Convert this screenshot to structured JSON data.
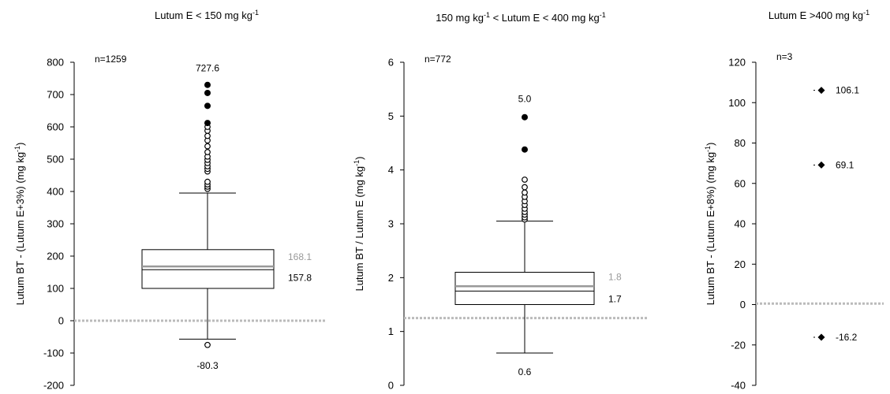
{
  "chart_data": [
    {
      "type": "boxplot",
      "title": "Lutum E < 150 mg kg",
      "title_sup": "-1",
      "ylabel": "Lutum BT - (Lutum E+3%) (mg kg",
      "ylabel_sup": "-1",
      "ylabel_tail": ")",
      "ylim": [
        -200,
        800
      ],
      "yticks": [
        -200,
        -100,
        0,
        100,
        200,
        300,
        400,
        500,
        600,
        700,
        800
      ],
      "n_label": "n=1259",
      "reference_line": 0,
      "box": {
        "whisker_low": -57,
        "q1": 100,
        "median": 157.8,
        "mean": 168.1,
        "q3": 220,
        "whisker_high": 395
      },
      "outliers_open": [
        -75,
        408,
        415,
        422,
        430,
        462,
        470,
        478,
        488,
        498,
        508,
        522,
        540,
        558,
        572,
        588,
        600
      ],
      "outliers_filled": [
        612,
        665,
        705,
        730
      ],
      "labels": [
        {
          "text": "727.6",
          "value": 727.6,
          "pos": "top"
        },
        {
          "text": "-80.3",
          "value": -80.3,
          "pos": "bottom"
        },
        {
          "text": "168.1",
          "value": 168.1,
          "pos": "right-upper",
          "grey": true
        },
        {
          "text": "157.8",
          "value": 157.8,
          "pos": "right-lower"
        }
      ]
    },
    {
      "type": "boxplot",
      "title_pre": "150 mg kg",
      "title_pre_sup": "-1",
      "title": " < Lutum E < 400 mg kg",
      "title_sup": "-1",
      "ylabel": "Lutum BT / Lutum E (mg kg",
      "ylabel_sup": "-1",
      "ylabel_tail": ")",
      "ylim": [
        0,
        6
      ],
      "yticks": [
        0,
        1,
        2,
        3,
        4,
        5,
        6
      ],
      "n_label": "n=772",
      "reference_line": 1.25,
      "box": {
        "whisker_low": 0.6,
        "q1": 1.5,
        "median": 1.75,
        "mean": 1.84,
        "q3": 2.1,
        "whisker_high": 3.05
      },
      "outliers_open": [
        3.08,
        3.12,
        3.17,
        3.22,
        3.28,
        3.35,
        3.42,
        3.5,
        3.58,
        3.68,
        3.82
      ],
      "outliers_filled": [
        4.38,
        4.98
      ],
      "labels": [
        {
          "text": "5.0",
          "value": 5.0,
          "pos": "top"
        },
        {
          "text": "0.6",
          "value": 0.6,
          "pos": "bottom"
        },
        {
          "text": "1.8",
          "value": 1.8,
          "pos": "right-upper",
          "grey": true
        },
        {
          "text": "1.7",
          "value": 1.7,
          "pos": "right-lower"
        }
      ]
    },
    {
      "type": "scatter",
      "title": "Lutum E >400 mg kg",
      "title_sup": "-1",
      "ylabel": "Lutum BT - (Lutum E+8%) (mg kg",
      "ylabel_sup": "-1",
      "ylabel_tail": ")",
      "ylim": [
        -40,
        120
      ],
      "yticks": [
        -40,
        -20,
        0,
        20,
        40,
        60,
        80,
        100,
        120
      ],
      "n_label": "n=3",
      "reference_line": 0.5,
      "points": [
        106.1,
        69.1,
        -16.2
      ],
      "labels": [
        {
          "text": "106.1",
          "value": 106.1
        },
        {
          "text": "69.1",
          "value": 69.1
        },
        {
          "text": "-16.2",
          "value": -16.2
        }
      ]
    }
  ]
}
